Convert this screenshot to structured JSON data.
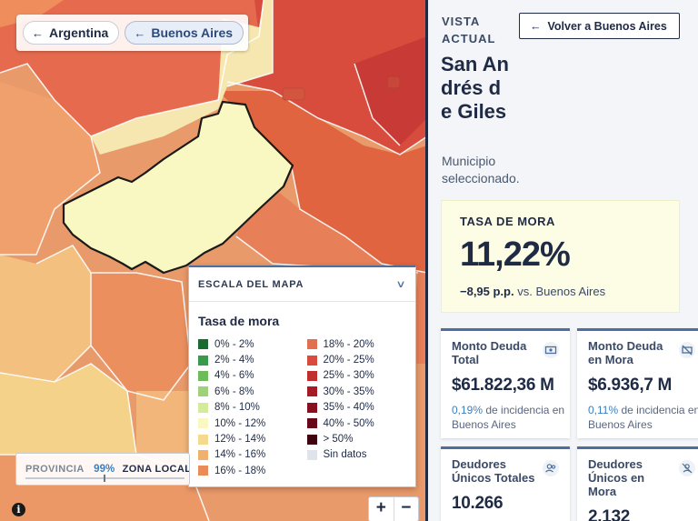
{
  "breadcrumbs": [
    {
      "label": "Argentina"
    },
    {
      "label": "Buenos Aires"
    }
  ],
  "legend": {
    "header": "ESCALA DEL MAPA",
    "title": "Tasa de mora",
    "items": [
      {
        "label": "0% - 2%",
        "color": "#1a6b30"
      },
      {
        "label": "2% - 4%",
        "color": "#3a9a4c"
      },
      {
        "label": "4% - 6%",
        "color": "#6dbb5a"
      },
      {
        "label": "6% - 8%",
        "color": "#9fd07a"
      },
      {
        "label": "8% - 10%",
        "color": "#d4eb9a"
      },
      {
        "label": "10% - 12%",
        "color": "#f9f7c2"
      },
      {
        "label": "12% - 14%",
        "color": "#f6d98f"
      },
      {
        "label": "14% - 16%",
        "color": "#f1b06c"
      },
      {
        "label": "16% - 18%",
        "color": "#ea8c5a"
      },
      {
        "label": "18% - 20%",
        "color": "#e2704f"
      },
      {
        "label": "20% - 25%",
        "color": "#d74c3e"
      },
      {
        "label": "25% - 30%",
        "color": "#c12e2e"
      },
      {
        "label": "30% - 35%",
        "color": "#a61a26"
      },
      {
        "label": "35% - 40%",
        "color": "#8a0f20"
      },
      {
        "label": "40% - 50%",
        "color": "#66081a"
      },
      {
        "label": "> 50%",
        "color": "#3d0410"
      },
      {
        "label": "Sin datos",
        "color": "#dfe3ea"
      }
    ]
  },
  "zona": {
    "left_label": "PROVINCIA",
    "percent": "99%",
    "right_label": "ZONA LOCAL"
  },
  "zoom": {
    "in": "+",
    "out": "−"
  },
  "info_label": "i",
  "panel": {
    "vista_label": "VISTA ACTUAL",
    "back_button": "Volver a Buenos Aires",
    "municipality": "San Andrés de Giles",
    "subtitle": "Municipio seleccionado.",
    "tasa": {
      "label": "TASA DE MORA",
      "value": "11,22%",
      "diff_value": "−8,95 p.p.",
      "diff_suffix": "vs. Buenos Aires"
    },
    "stats": [
      {
        "label": "Monto Deuda Total",
        "value": "$61.822,36 M",
        "pct": "0,19%",
        "note": "de incidencia en Buenos Aires",
        "icon": "money-icon"
      },
      {
        "label": "Monto Deuda en Mora",
        "value": "$6.936,7 M",
        "pct": "0,11%",
        "note": "de incidencia en Buenos Aires",
        "icon": "money-off-icon"
      },
      {
        "label": "Deudores Únicos Totales",
        "value": "10.266",
        "icon": "users-icon"
      },
      {
        "label": "Deudores Únicos en Mora",
        "value": "2.132",
        "icon": "user-off-icon"
      }
    ]
  },
  "colors": {
    "accent": "#4d6f9c",
    "dark": "#1f2a44",
    "link": "#3b7fc0",
    "selected_fill": "#f9f7c2"
  }
}
